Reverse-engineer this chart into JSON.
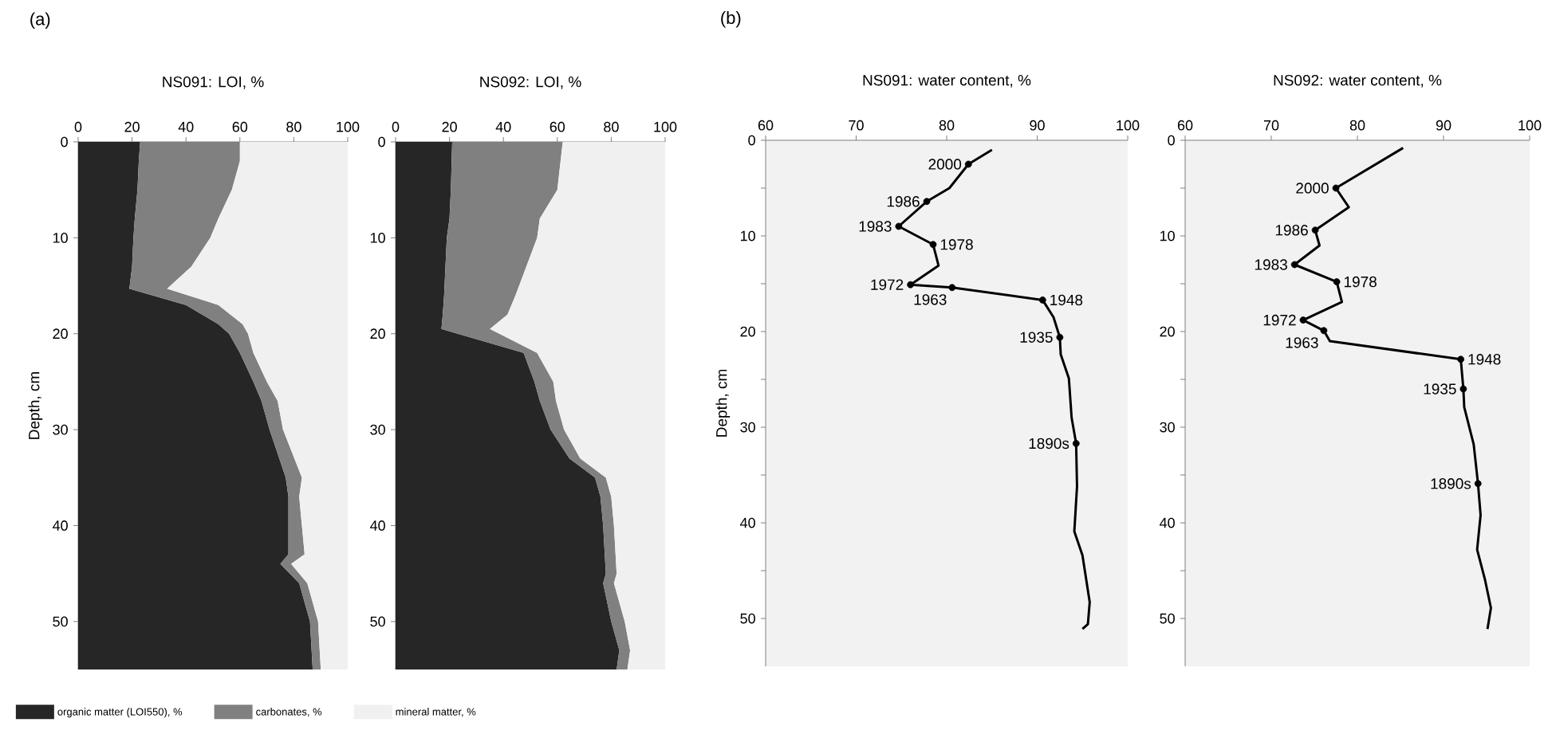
{
  "chart_data": [
    {
      "type": "area",
      "title": "NS091: LOI, %",
      "ylabel": "Depth, cm",
      "annotations": [
        "(a)"
      ],
      "stacked": true,
      "orientation": "horizontal",
      "legend": "bottom",
      "xlim": [
        0,
        100
      ],
      "xticks": [
        0,
        20,
        40,
        60,
        80,
        100
      ],
      "ylim": [
        55,
        0
      ],
      "yticks": [
        0,
        10,
        20,
        30,
        40,
        50
      ],
      "x": [
        0,
        2,
        5,
        8,
        10,
        13,
        15.3,
        17,
        19,
        20,
        22,
        25,
        27,
        30,
        35,
        37,
        40,
        43,
        44,
        46,
        50,
        55
      ],
      "series": [
        {
          "name": "organic matter (LOI550), %",
          "color": "#262626",
          "values": [
            23,
            22.5,
            22,
            21,
            20.5,
            20,
            19,
            40,
            52,
            56,
            60,
            65,
            68,
            71,
            77,
            78,
            78,
            78,
            75,
            82,
            86,
            87
          ]
        },
        {
          "name": "carbonates, %",
          "color": "#808080",
          "values": [
            37,
            37.5,
            35,
            31,
            28.5,
            22,
            14,
            12,
            9,
            7,
            5,
            5,
            6,
            5,
            6,
            4,
            5,
            6,
            4,
            3,
            3,
            3
          ]
        },
        {
          "name": "mineral matter, %",
          "color": "#f0f0f0",
          "values": [
            40,
            40,
            43,
            48,
            51,
            58,
            67,
            48,
            39,
            37,
            35,
            30,
            26,
            24,
            17,
            18,
            17,
            16,
            21,
            15,
            11,
            10
          ]
        }
      ]
    },
    {
      "type": "area",
      "title": "NS092: LOI, %",
      "stacked": true,
      "orientation": "horizontal",
      "xlim": [
        0,
        100
      ],
      "xticks": [
        0,
        20,
        40,
        60,
        80,
        100
      ],
      "ylim": [
        55,
        0
      ],
      "yticks": [
        0,
        10,
        20,
        30,
        40,
        50
      ],
      "x": [
        0,
        5,
        8,
        10,
        13,
        16,
        18,
        19.5,
        22,
        25,
        27,
        30,
        33,
        35,
        37,
        40,
        45,
        46,
        50,
        53,
        55
      ],
      "series": [
        {
          "color": "#262626",
          "values": [
            21,
            20.5,
            20,
            19,
            18.5,
            18,
            17.5,
            17,
            47.5,
            51.5,
            53.5,
            57.5,
            64.5,
            74,
            76,
            77,
            78,
            77,
            80,
            83,
            82
          ]
        },
        {
          "color": "#808080",
          "values": [
            41,
            39.5,
            33.5,
            33.5,
            30,
            26.5,
            24,
            18,
            5,
            7,
            6,
            5,
            4,
            4,
            4,
            4,
            4,
            4,
            5,
            4,
            4
          ]
        },
        {
          "color": "#f0f0f0",
          "values": [
            38,
            40,
            46.5,
            47.5,
            51.5,
            55.5,
            58.5,
            65,
            47.5,
            41.5,
            40.5,
            37.5,
            31.5,
            22,
            20,
            19,
            18,
            19,
            15,
            13,
            14
          ]
        }
      ]
    },
    {
      "type": "line",
      "title": "NS091: water content, %",
      "ylabel": "Depth, cm",
      "xlim": [
        60,
        100
      ],
      "xticks": [
        60,
        70,
        80,
        90,
        100
      ],
      "ylim": [
        55,
        0
      ],
      "yticks": [
        0,
        {
          "value": 5,
          "label": null
        },
        10,
        {
          "value": 15,
          "label": null
        },
        20,
        {
          "value": 25,
          "label": null
        },
        30,
        {
          "value": 35,
          "label": null
        },
        40,
        {
          "value": 45,
          "label": null
        },
        50
      ],
      "annotations": [
        "(b)",
        {
          "text": "2000",
          "x": 82.4,
          "y": 2.5
        },
        {
          "text": "1986",
          "x": 77.8,
          "y": 6.4
        },
        {
          "text": "1983",
          "x": 74.7,
          "y": 9.0
        },
        {
          "text": "1978",
          "x": 78.5,
          "y": 10.9
        },
        {
          "text": "1972",
          "x": 76.0,
          "y": 15.1
        },
        {
          "text": "1963",
          "x": 80.6,
          "y": 15.4
        },
        {
          "text": "1948",
          "x": 90.6,
          "y": 16.7
        },
        {
          "text": "1935",
          "x": 92.5,
          "y": 20.6
        },
        {
          "text": "1890s",
          "x": 94.3,
          "y": 31.7
        }
      ],
      "series": [
        {
          "type": "line",
          "color": "#000000",
          "x": [
            85,
            82.4,
            80.3,
            77.8,
            74.7,
            78.5,
            79.1,
            76.0,
            80.6,
            90.6,
            91.8,
            92.5,
            92.6,
            93.5,
            93.8,
            94.3,
            94.4,
            94.1,
            95.0,
            95.8,
            95.6,
            95.0
          ],
          "values": [
            1.0,
            2.5,
            5.0,
            6.4,
            9.0,
            10.9,
            13.1,
            15.1,
            15.4,
            16.7,
            18.5,
            20.6,
            22.4,
            24.9,
            29.0,
            31.7,
            36.2,
            40.9,
            43.4,
            48.3,
            50.6,
            51.1
          ]
        },
        {
          "type": "scatter",
          "marker": "circle",
          "color": "#000000",
          "x": [
            82.4,
            77.8,
            74.7,
            78.5,
            76.0,
            80.6,
            90.6,
            92.5,
            94.3
          ],
          "values": [
            2.5,
            6.4,
            9.0,
            10.9,
            15.1,
            15.4,
            16.7,
            20.6,
            31.7
          ]
        }
      ]
    },
    {
      "type": "line",
      "title": "NS092: water content, %",
      "xlim": [
        60,
        100
      ],
      "xticks": [
        60,
        70,
        80,
        90,
        100
      ],
      "ylim": [
        55,
        0
      ],
      "yticks": [
        0,
        {
          "value": 5,
          "label": null
        },
        10,
        {
          "value": 15,
          "label": null
        },
        20,
        {
          "value": 25,
          "label": null
        },
        30,
        {
          "value": 35,
          "label": null
        },
        40,
        {
          "value": 45,
          "label": null
        },
        50
      ],
      "annotations": [
        {
          "text": "2000",
          "x": 77.5,
          "y": 5.0
        },
        {
          "text": "1986",
          "x": 75.1,
          "y": 9.4
        },
        {
          "text": "1983",
          "x": 72.7,
          "y": 13.0
        },
        {
          "text": "1978",
          "x": 77.6,
          "y": 14.8
        },
        {
          "text": "1972",
          "x": 73.7,
          "y": 18.8
        },
        {
          "text": "1963",
          "x": 76.1,
          "y": 19.9
        },
        {
          "text": "1948",
          "x": 92.0,
          "y": 22.9
        },
        {
          "text": "1935",
          "x": 92.3,
          "y": 26.0
        },
        {
          "text": "1890s",
          "x": 94.0,
          "y": 35.9
        }
      ],
      "series": [
        {
          "type": "line",
          "color": "#000000",
          "x": [
            85.3,
            77.5,
            79.0,
            75.1,
            75.6,
            72.7,
            77.6,
            78.2,
            73.7,
            76.1,
            76.8,
            92.0,
            92.3,
            92.4,
            93.5,
            94.0,
            94.3,
            93.9,
            94.8,
            95.5,
            95.1
          ],
          "values": [
            0.8,
            5.0,
            7.0,
            9.4,
            11.0,
            13.0,
            14.8,
            16.9,
            18.8,
            19.9,
            21.0,
            22.9,
            26.0,
            27.9,
            31.8,
            35.9,
            39.2,
            42.8,
            45.9,
            48.9,
            51.1
          ]
        },
        {
          "type": "scatter",
          "marker": "circle",
          "color": "#000000",
          "x": [
            77.5,
            75.1,
            72.7,
            77.6,
            73.7,
            76.1,
            92.0,
            92.3,
            94.0
          ],
          "values": [
            5.0,
            9.4,
            13.0,
            14.8,
            18.8,
            19.9,
            22.9,
            26.0,
            35.9
          ]
        }
      ]
    }
  ]
}
